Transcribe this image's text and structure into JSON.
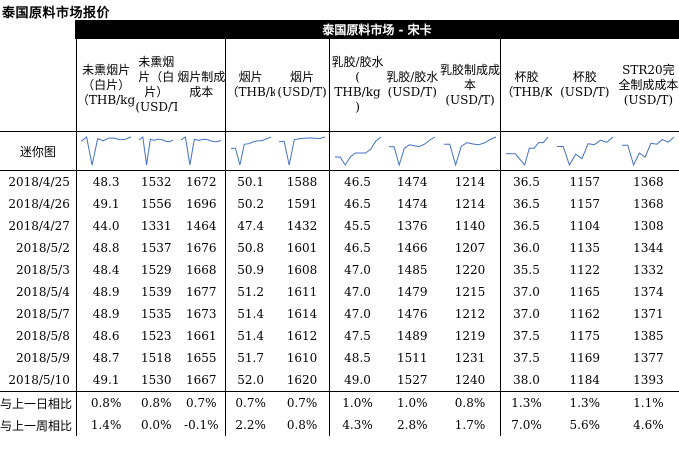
{
  "page_title": "泰国原料市场报价",
  "market_title": "泰国原料市场 - 宋卡",
  "columns": [
    "未熏烟片（白片）（THB/kg）",
    "未熏烟片（白片）(USD/T)",
    "烟片制成成本",
    "烟片（THB/kg）",
    "烟片(USD/T)",
    "乳胶/胶水 ( THB/kg )",
    "乳胶/胶水 (USD/T)",
    "乳胶制成成本(USD/T)",
    "杯胶（THB/KG）",
    "杯胶(USD/T)",
    "STR20完全制成成本(USD/T)"
  ],
  "sparkline_label": "迷你图",
  "rows": [
    {
      "date": "2018/4/25",
      "values": [
        "48.3",
        "1532",
        "1672",
        "50.1",
        "1588",
        "46.5",
        "1474",
        "1214",
        "36.5",
        "1157",
        "1368"
      ]
    },
    {
      "date": "2018/4/26",
      "values": [
        "49.1",
        "1556",
        "1696",
        "50.2",
        "1591",
        "46.5",
        "1474",
        "1214",
        "36.5",
        "1157",
        "1368"
      ]
    },
    {
      "date": "2018/4/27",
      "values": [
        "44.0",
        "1331",
        "1464",
        "47.4",
        "1432",
        "45.5",
        "1376",
        "1140",
        "36.5",
        "1104",
        "1308"
      ]
    },
    {
      "date": "2018/5/2",
      "values": [
        "48.8",
        "1537",
        "1676",
        "50.8",
        "1601",
        "46.5",
        "1466",
        "1207",
        "36.0",
        "1135",
        "1344"
      ]
    },
    {
      "date": "2018/5/3",
      "values": [
        "48.4",
        "1529",
        "1668",
        "50.9",
        "1608",
        "47.0",
        "1485",
        "1220",
        "35.5",
        "1122",
        "1332"
      ]
    },
    {
      "date": "2018/5/4",
      "values": [
        "48.9",
        "1539",
        "1677",
        "51.2",
        "1611",
        "47.0",
        "1479",
        "1215",
        "37.0",
        "1165",
        "1374"
      ]
    },
    {
      "date": "2018/5/7",
      "values": [
        "48.9",
        "1535",
        "1673",
        "51.4",
        "1614",
        "47.0",
        "1476",
        "1212",
        "37.0",
        "1162",
        "1371"
      ]
    },
    {
      "date": "2018/5/8",
      "values": [
        "48.6",
        "1523",
        "1661",
        "51.4",
        "1612",
        "47.5",
        "1489",
        "1219",
        "37.5",
        "1175",
        "1385"
      ]
    },
    {
      "date": "2018/5/9",
      "values": [
        "48.7",
        "1518",
        "1655",
        "51.7",
        "1610",
        "48.5",
        "1511",
        "1231",
        "37.5",
        "1169",
        "1377"
      ]
    },
    {
      "date": "2018/5/10",
      "values": [
        "49.1",
        "1530",
        "1667",
        "52.0",
        "1620",
        "49.0",
        "1527",
        "1240",
        "38.0",
        "1184",
        "1393"
      ]
    }
  ],
  "summary": [
    {
      "label": "与上一日相比",
      "values": [
        "0.8%",
        "0.8%",
        "0.7%",
        "0.7%",
        "0.7%",
        "1.0%",
        "1.0%",
        "0.8%",
        "1.3%",
        "1.3%",
        "1.1%"
      ]
    },
    {
      "label": "与上一周相比",
      "values": [
        "1.4%",
        "0.0%",
        "-0.1%",
        "2.2%",
        "0.8%",
        "4.3%",
        "2.8%",
        "1.7%",
        "7.0%",
        "5.6%",
        "4.6%"
      ]
    }
  ],
  "colors": {
    "sparkline": "#4472c4",
    "header_bar": "#000000"
  }
}
